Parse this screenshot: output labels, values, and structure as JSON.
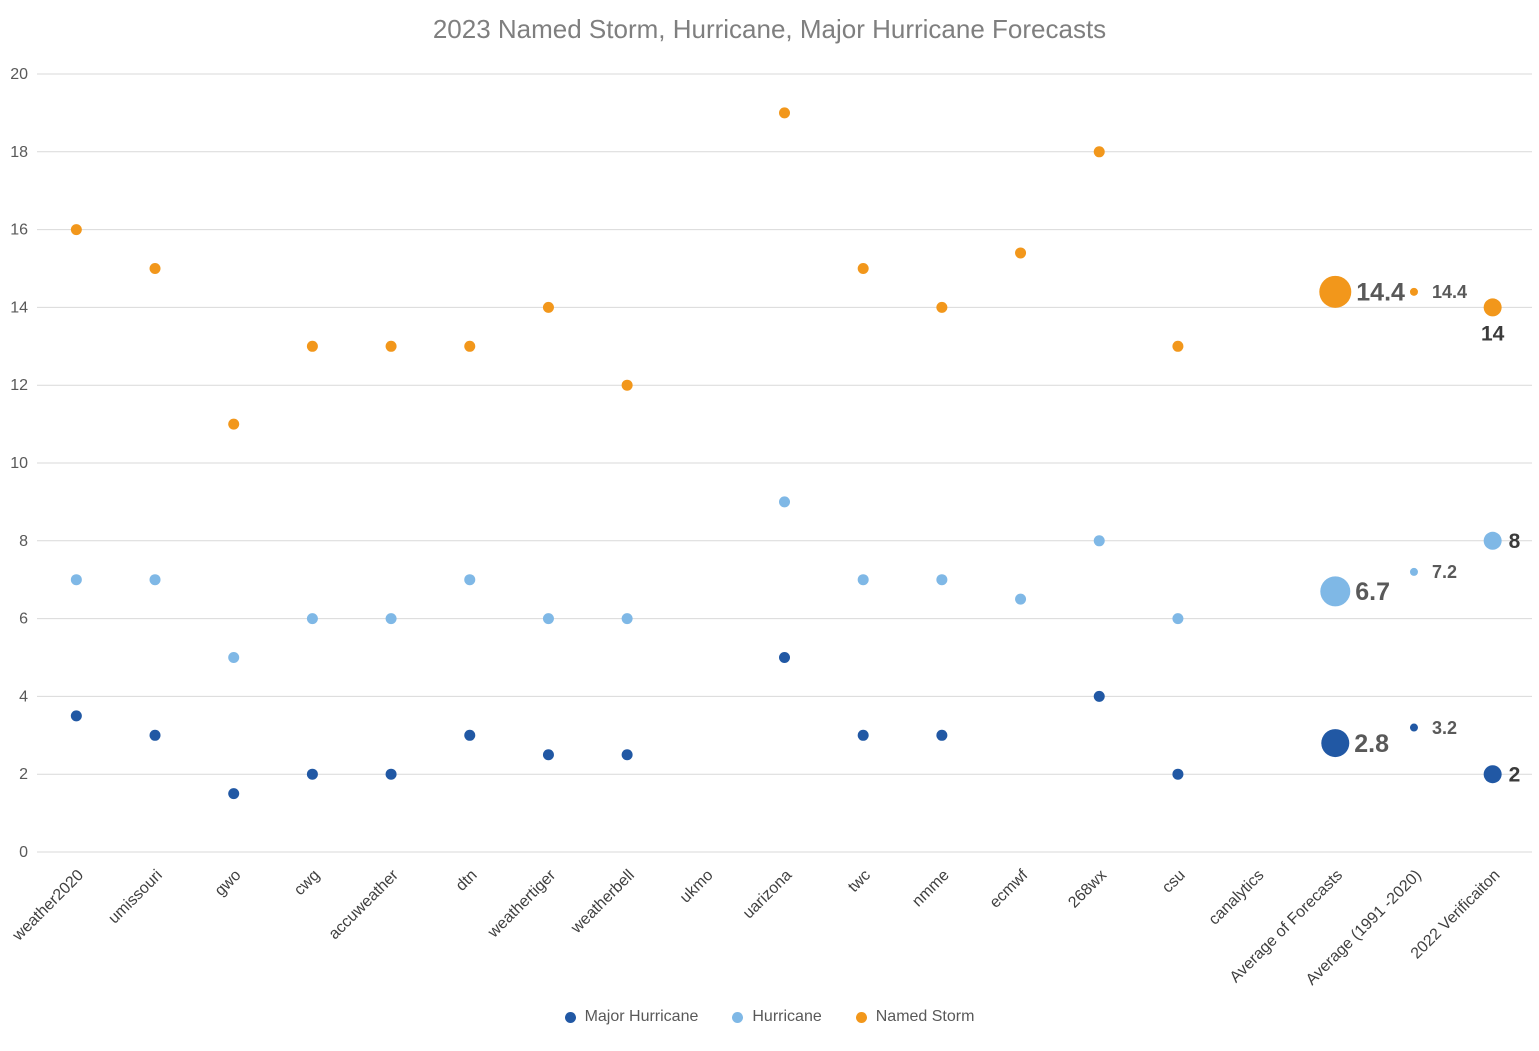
{
  "title": "2023 Named Storm, Hurricane, Major Hurricane Forecasts",
  "colors": {
    "background": "#FFFFFF",
    "grid": "#D9D9D9",
    "axis_text": "#595959",
    "category_text": "#3F3F3F",
    "value_label_gray": "#595959",
    "value_label_dark": "#3B3B3B",
    "series": {
      "Major Hurricane": "#2158A4",
      "Hurricane": "#7FB8E6",
      "Named Storm": "#F2971B"
    }
  },
  "legend": [
    {
      "label": "Major Hurricane",
      "series": "Major Hurricane"
    },
    {
      "label": "Hurricane",
      "series": "Hurricane"
    },
    {
      "label": "Named Storm",
      "series": "Named Storm"
    }
  ],
  "chart_data": {
    "type": "scatter",
    "title": "2023 Named Storm, Hurricane, Major Hurricane Forecasts",
    "xlabel": "",
    "ylabel": "",
    "ylim": [
      0,
      20
    ],
    "ytick_step": 2,
    "grid": true,
    "legend_position": "bottom",
    "categories": [
      "weather2020",
      "umissouri",
      "gwo",
      "cwg",
      "accuweather",
      "dtn",
      "weathertiger",
      "weatherbell",
      "ukmo",
      "uarizona",
      "twc",
      "nmme",
      "ecmwf",
      "268wx",
      "csu",
      "canalytics",
      "Average of Forecasts",
      "Average (1991 -2020)",
      "2022 Verificaiton"
    ],
    "series": [
      {
        "name": "Major Hurricane",
        "values": [
          3.5,
          3,
          1.5,
          2,
          2,
          3,
          2.5,
          2.5,
          null,
          5,
          3,
          3,
          null,
          4,
          2,
          null,
          2.8,
          3.2,
          2
        ]
      },
      {
        "name": "Hurricane",
        "values": [
          7,
          7,
          5,
          6,
          6,
          7,
          6,
          6,
          null,
          9,
          7,
          7,
          6.5,
          8,
          6,
          null,
          6.7,
          7.2,
          8
        ]
      },
      {
        "name": "Named Storm",
        "values": [
          16,
          15,
          11,
          13,
          13,
          13,
          14,
          12,
          null,
          19,
          15,
          14,
          15.4,
          18,
          13,
          null,
          14.4,
          14.4,
          14
        ]
      }
    ],
    "special_points": {
      "16": {
        "radii": {
          "Major Hurricane": 14,
          "Hurricane": 15,
          "Named Storm": 16
        },
        "label_style": "large-gray",
        "label_gap": 5
      },
      "17": {
        "radii": {
          "Major Hurricane": 4,
          "Hurricane": 4,
          "Named Storm": 4
        },
        "label_style": "small-gray",
        "label_gap": 14
      },
      "18": {
        "radii": {
          "Major Hurricane": 9,
          "Hurricane": 9,
          "Named Storm": 9
        },
        "label_style": "bold-dark",
        "label_gap": 7
      }
    },
    "default_marker_radius": 5.5,
    "value_labels": [
      {
        "category_index": 16,
        "series": "Named Storm",
        "text": "14.4",
        "position": "right"
      },
      {
        "category_index": 16,
        "series": "Hurricane",
        "text": "6.7",
        "position": "right"
      },
      {
        "category_index": 16,
        "series": "Major Hurricane",
        "text": "2.8",
        "position": "right"
      },
      {
        "category_index": 17,
        "series": "Named Storm",
        "text": "14.4",
        "position": "right"
      },
      {
        "category_index": 17,
        "series": "Hurricane",
        "text": "7.2",
        "position": "right"
      },
      {
        "category_index": 17,
        "series": "Major Hurricane",
        "text": "3.2",
        "position": "right"
      },
      {
        "category_index": 18,
        "series": "Named Storm",
        "text": "14",
        "position": "below"
      },
      {
        "category_index": 18,
        "series": "Hurricane",
        "text": "8",
        "position": "right"
      },
      {
        "category_index": 18,
        "series": "Major Hurricane",
        "text": "2",
        "position": "right"
      }
    ]
  }
}
